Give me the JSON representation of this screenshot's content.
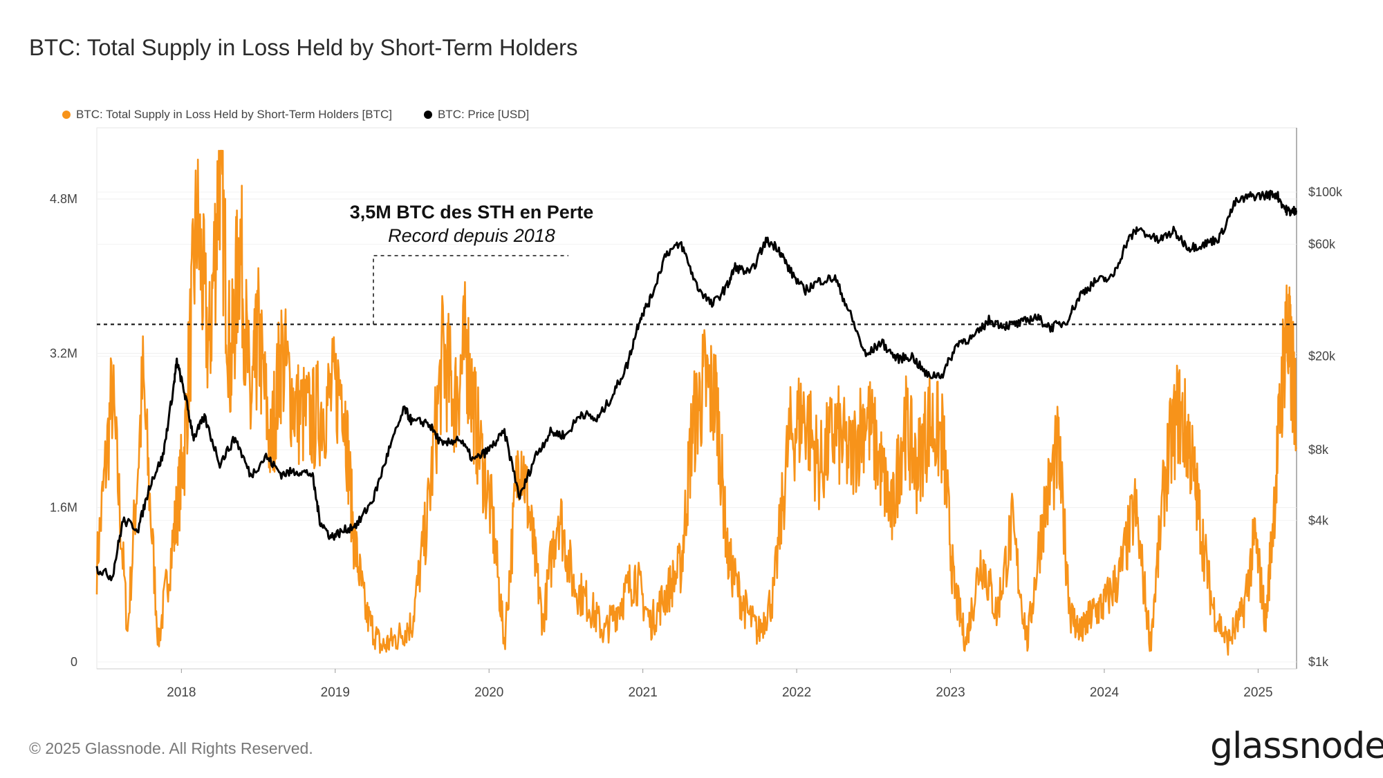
{
  "title": "BTC: Total Supply in Loss Held by Short-Term Holders",
  "legend": [
    {
      "label": "BTC: Total Supply in Loss Held by Short-Term Holders [BTC]",
      "color": "#f7931a"
    },
    {
      "label": "BTC: Price [USD]",
      "color": "#000000"
    }
  ],
  "annotation": {
    "line1": "3,5M BTC des STH en Perte",
    "line2": "Record depuis 2018",
    "level": 3500000
  },
  "footer": "© 2025 Glassnode. All Rights Reserved.",
  "brand": "glassnode",
  "chart_data": {
    "type": "line",
    "x_axis": {
      "ticks": [
        "2018",
        "2019",
        "2020",
        "2021",
        "2022",
        "2023",
        "2024",
        "2025"
      ],
      "range": [
        2017.45,
        2025.25
      ]
    },
    "y_left": {
      "ticks": [
        "0",
        "1.6M",
        "3.2M",
        "4.8M"
      ],
      "tick_values": [
        0,
        1600000,
        3200000,
        4800000
      ],
      "range": [
        0,
        4800000
      ]
    },
    "y_right": {
      "scale": "log",
      "ticks": [
        "$1k",
        "$4k",
        "$8k",
        "$20k",
        "$60k",
        "$100k"
      ],
      "tick_values": [
        1000,
        4000,
        8000,
        20000,
        60000,
        100000
      ],
      "range": [
        1000,
        100000
      ]
    },
    "series": [
      {
        "name": "BTC: Total Supply in Loss Held by Short-Term Holders [BTC]",
        "axis": "left",
        "color": "#f7931a",
        "points": [
          [
            2017.45,
            1.0
          ],
          [
            2017.55,
            2.8
          ],
          [
            2017.65,
            0.3
          ],
          [
            2017.75,
            2.9
          ],
          [
            2017.85,
            0.2
          ],
          [
            2017.95,
            1.3
          ],
          [
            2018.02,
            2.2
          ],
          [
            2018.1,
            4.6
          ],
          [
            2018.18,
            3.2
          ],
          [
            2018.25,
            5.2
          ],
          [
            2018.32,
            3.0
          ],
          [
            2018.38,
            4.4
          ],
          [
            2018.45,
            2.6
          ],
          [
            2018.5,
            3.4
          ],
          [
            2018.58,
            2.2
          ],
          [
            2018.65,
            3.2
          ],
          [
            2018.75,
            2.6
          ],
          [
            2018.85,
            2.5
          ],
          [
            2018.95,
            2.7
          ],
          [
            2019.05,
            2.9
          ],
          [
            2019.12,
            1.3
          ],
          [
            2019.2,
            0.5
          ],
          [
            2019.3,
            0.15
          ],
          [
            2019.4,
            0.25
          ],
          [
            2019.5,
            0.4
          ],
          [
            2019.6,
            1.5
          ],
          [
            2019.7,
            3.2
          ],
          [
            2019.78,
            2.7
          ],
          [
            2019.85,
            3.3
          ],
          [
            2019.92,
            2.4
          ],
          [
            2020.02,
            1.5
          ],
          [
            2020.1,
            0.2
          ],
          [
            2020.2,
            2.3
          ],
          [
            2020.28,
            1.3
          ],
          [
            2020.35,
            0.4
          ],
          [
            2020.45,
            1.6
          ],
          [
            2020.55,
            0.8
          ],
          [
            2020.65,
            0.6
          ],
          [
            2020.75,
            0.3
          ],
          [
            2020.85,
            0.6
          ],
          [
            2020.95,
            0.9
          ],
          [
            2021.05,
            0.4
          ],
          [
            2021.15,
            0.7
          ],
          [
            2021.25,
            1.0
          ],
          [
            2021.32,
            2.4
          ],
          [
            2021.4,
            2.9
          ],
          [
            2021.48,
            2.7
          ],
          [
            2021.55,
            1.1
          ],
          [
            2021.65,
            0.6
          ],
          [
            2021.75,
            0.3
          ],
          [
            2021.85,
            0.7
          ],
          [
            2021.95,
            2.3
          ],
          [
            2022.05,
            2.6
          ],
          [
            2022.15,
            2.0
          ],
          [
            2022.25,
            2.4
          ],
          [
            2022.35,
            2.1
          ],
          [
            2022.45,
            2.6
          ],
          [
            2022.55,
            2.0
          ],
          [
            2022.62,
            1.5
          ],
          [
            2022.7,
            2.5
          ],
          [
            2022.78,
            2.0
          ],
          [
            2022.86,
            2.5
          ],
          [
            2022.95,
            2.3
          ],
          [
            2023.02,
            0.8
          ],
          [
            2023.1,
            0.2
          ],
          [
            2023.2,
            1.1
          ],
          [
            2023.3,
            0.5
          ],
          [
            2023.4,
            1.4
          ],
          [
            2023.5,
            0.2
          ],
          [
            2023.6,
            1.5
          ],
          [
            2023.7,
            2.2
          ],
          [
            2023.78,
            0.5
          ],
          [
            2023.85,
            0.3
          ],
          [
            2023.92,
            0.5
          ],
          [
            2024.0,
            0.6
          ],
          [
            2024.1,
            0.9
          ],
          [
            2024.2,
            1.6
          ],
          [
            2024.3,
            0.2
          ],
          [
            2024.4,
            2.0
          ],
          [
            2024.48,
            2.6
          ],
          [
            2024.55,
            2.3
          ],
          [
            2024.62,
            1.5
          ],
          [
            2024.7,
            0.6
          ],
          [
            2024.8,
            0.2
          ],
          [
            2024.9,
            0.5
          ],
          [
            2024.98,
            1.3
          ],
          [
            2025.05,
            0.4
          ],
          [
            2025.12,
            2.0
          ],
          [
            2025.18,
            3.5
          ],
          [
            2025.22,
            3.0
          ],
          [
            2025.25,
            2.6
          ]
        ]
      },
      {
        "name": "BTC: Price [USD]",
        "axis": "right",
        "color": "#000000",
        "points": [
          [
            2017.45,
            2500
          ],
          [
            2017.55,
            2300
          ],
          [
            2017.62,
            4000
          ],
          [
            2017.72,
            3700
          ],
          [
            2017.8,
            5800
          ],
          [
            2017.88,
            7500
          ],
          [
            2017.95,
            15000
          ],
          [
            2017.97,
            19000
          ],
          [
            2018.02,
            14000
          ],
          [
            2018.08,
            9000
          ],
          [
            2018.15,
            11000
          ],
          [
            2018.25,
            7000
          ],
          [
            2018.35,
            9000
          ],
          [
            2018.45,
            6200
          ],
          [
            2018.55,
            7500
          ],
          [
            2018.65,
            6300
          ],
          [
            2018.75,
            6500
          ],
          [
            2018.85,
            6300
          ],
          [
            2018.9,
            4000
          ],
          [
            2018.97,
            3400
          ],
          [
            2019.05,
            3600
          ],
          [
            2019.15,
            3900
          ],
          [
            2019.25,
            5000
          ],
          [
            2019.35,
            8000
          ],
          [
            2019.45,
            12000
          ],
          [
            2019.5,
            10500
          ],
          [
            2019.6,
            10500
          ],
          [
            2019.7,
            8300
          ],
          [
            2019.8,
            9000
          ],
          [
            2019.9,
            7200
          ],
          [
            2020.0,
            8000
          ],
          [
            2020.1,
            9500
          ],
          [
            2020.2,
            5000
          ],
          [
            2020.3,
            7500
          ],
          [
            2020.4,
            9500
          ],
          [
            2020.5,
            9200
          ],
          [
            2020.6,
            11500
          ],
          [
            2020.7,
            10700
          ],
          [
            2020.8,
            13500
          ],
          [
            2020.9,
            18500
          ],
          [
            2020.98,
            29000
          ],
          [
            2021.05,
            35000
          ],
          [
            2021.15,
            55000
          ],
          [
            2021.25,
            60000
          ],
          [
            2021.35,
            40000
          ],
          [
            2021.45,
            33000
          ],
          [
            2021.55,
            40000
          ],
          [
            2021.6,
            48000
          ],
          [
            2021.7,
            45000
          ],
          [
            2021.8,
            62000
          ],
          [
            2021.88,
            58000
          ],
          [
            2021.95,
            47000
          ],
          [
            2022.05,
            38000
          ],
          [
            2022.15,
            42000
          ],
          [
            2022.25,
            43000
          ],
          [
            2022.35,
            30000
          ],
          [
            2022.45,
            20000
          ],
          [
            2022.55,
            23000
          ],
          [
            2022.65,
            19500
          ],
          [
            2022.75,
            20000
          ],
          [
            2022.85,
            16500
          ],
          [
            2022.95,
            16800
          ],
          [
            2023.05,
            23000
          ],
          [
            2023.15,
            24000
          ],
          [
            2023.25,
            28500
          ],
          [
            2023.35,
            27000
          ],
          [
            2023.45,
            27500
          ],
          [
            2023.55,
            29500
          ],
          [
            2023.65,
            26500
          ],
          [
            2023.75,
            28000
          ],
          [
            2023.85,
            37000
          ],
          [
            2023.95,
            42000
          ],
          [
            2024.05,
            43000
          ],
          [
            2024.15,
            62000
          ],
          [
            2024.22,
            70000
          ],
          [
            2024.35,
            62000
          ],
          [
            2024.45,
            68000
          ],
          [
            2024.55,
            58000
          ],
          [
            2024.65,
            60000
          ],
          [
            2024.75,
            64000
          ],
          [
            2024.85,
            90000
          ],
          [
            2024.95,
            96000
          ],
          [
            2025.05,
            97000
          ],
          [
            2025.12,
            98000
          ],
          [
            2025.18,
            84000
          ],
          [
            2025.22,
            82000
          ],
          [
            2025.25,
            85000
          ]
        ]
      }
    ],
    "grid": true,
    "legend_position": "top-left"
  }
}
